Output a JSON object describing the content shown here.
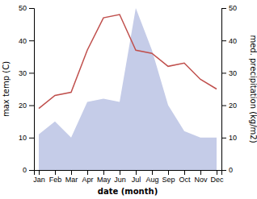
{
  "chart_data": {
    "type": "line",
    "categories": [
      "Jan",
      "Feb",
      "Mar",
      "Apr",
      "May",
      "Jun",
      "Jul",
      "Aug",
      "Sep",
      "Oct",
      "Nov",
      "Dec"
    ],
    "series": [
      {
        "type": "area",
        "axis": "y2",
        "color": "#c5cce8",
        "values": [
          11,
          15,
          10,
          21,
          22,
          21,
          50,
          37,
          20,
          12,
          10,
          10
        ]
      },
      {
        "type": "line",
        "color": "#c0504d",
        "values": [
          19,
          23,
          24,
          37,
          47,
          48,
          37,
          36,
          32,
          33,
          28,
          25
        ]
      }
    ],
    "xlabel": "date (month)",
    "ylabel": "max temp (C)",
    "y2label": "med. precipitation (kg/m2)",
    "ylim": [
      0,
      50
    ],
    "yticks": [
      0,
      10,
      20,
      30,
      40,
      50
    ],
    "y2lim": [
      0,
      50
    ],
    "y2ticks": [
      0,
      10,
      20,
      30,
      40,
      50
    ]
  }
}
